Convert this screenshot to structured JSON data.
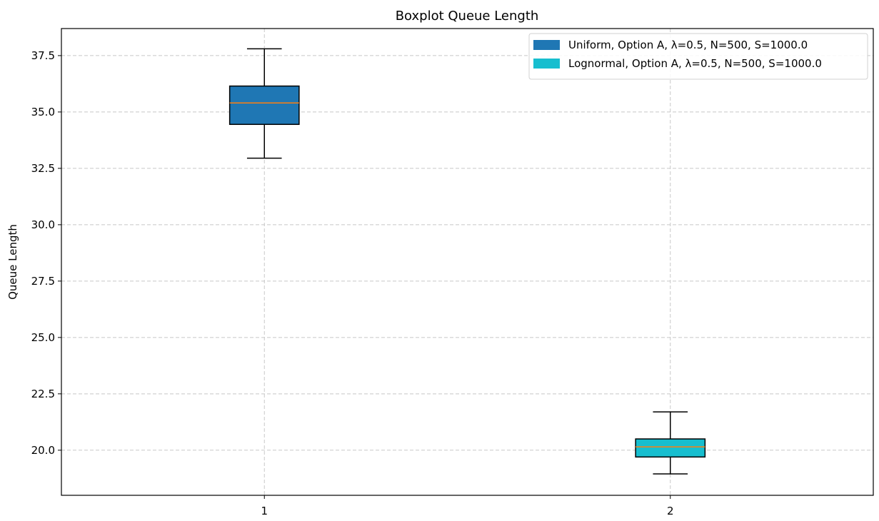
{
  "chart_data": {
    "type": "boxplot",
    "title": "Boxplot Queue Length",
    "xlabel": "",
    "ylabel": "Queue Length",
    "categories": [
      "1",
      "2"
    ],
    "ylim": [
      18.0,
      38.7
    ],
    "yticks": [
      20.0,
      22.5,
      25.0,
      27.5,
      30.0,
      32.5,
      35.0,
      37.5
    ],
    "ytick_labels": [
      "20.0",
      "22.5",
      "25.0",
      "27.5",
      "30.0",
      "32.5",
      "35.0",
      "37.5"
    ],
    "grid": true,
    "legend_position": "top-right",
    "series": [
      {
        "name": "Uniform, Option A, λ=0.5, N=500, S=1000.0",
        "color": "#1f77b4",
        "whisker_low": 32.95,
        "q1": 34.45,
        "median": 35.4,
        "q3": 36.15,
        "whisker_high": 37.8
      },
      {
        "name": "Lognormal, Option A, λ=0.5, N=500, S=1000.0",
        "color": "#17becf",
        "whisker_low": 18.95,
        "q1": 19.7,
        "median": 20.15,
        "q3": 20.5,
        "whisker_high": 21.7
      }
    ],
    "median_color": "#ff7f0e"
  }
}
